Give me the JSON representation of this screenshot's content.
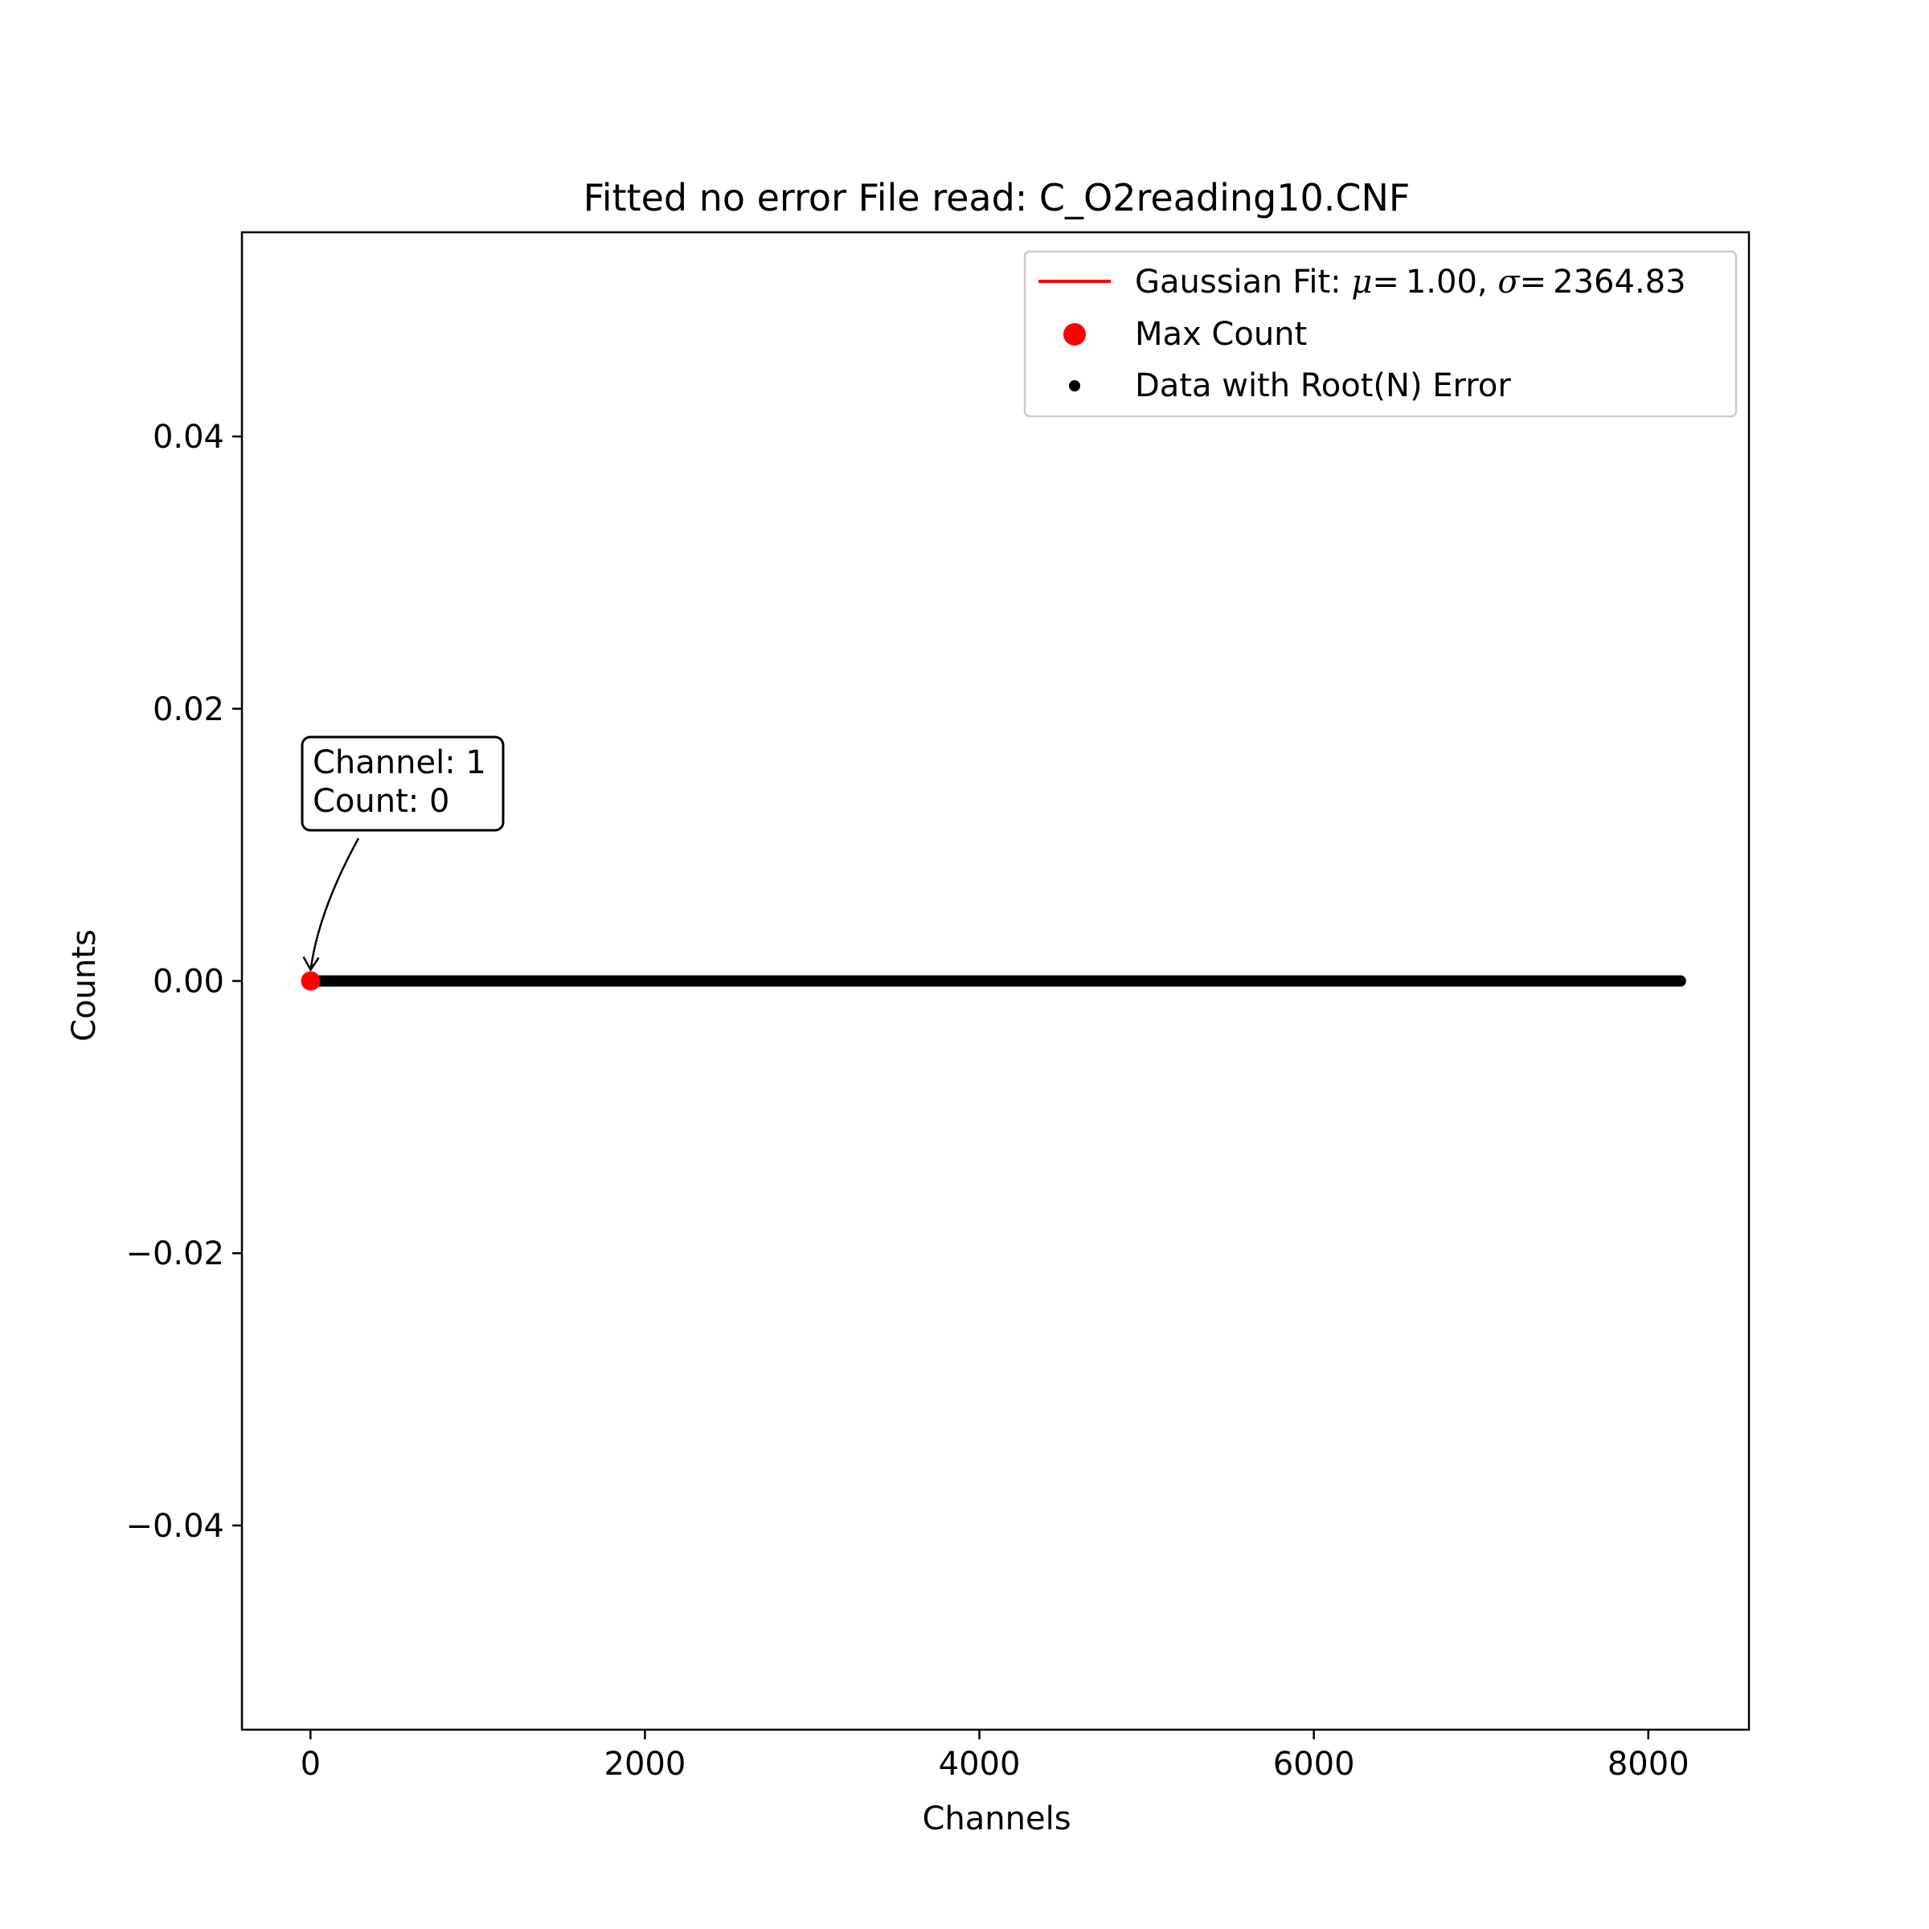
{
  "chart_data": {
    "type": "scatter",
    "title": "Fitted no error File read: C_O2reading10.CNF",
    "xlabel": "Channels",
    "ylabel": "Counts",
    "xlim": [
      -410,
      8602
    ],
    "ylim": [
      -0.055,
      0.055
    ],
    "xticks": [
      0,
      2000,
      4000,
      6000,
      8000
    ],
    "xtick_labels": [
      "0",
      "2000",
      "4000",
      "6000",
      "8000"
    ],
    "yticks": [
      -0.04,
      -0.02,
      0.0,
      0.02,
      0.04
    ],
    "ytick_labels": [
      "−0.04",
      "−0.02",
      "0.00",
      "0.02",
      "0.04"
    ],
    "grid": false,
    "legend_position": "top-right",
    "series": [
      {
        "name": "Data with Root(N) Error",
        "kind": "points",
        "color": "#000000",
        "x_range": [
          1,
          8192
        ],
        "y_constant": 0
      },
      {
        "name": "Max Count",
        "kind": "marker",
        "color": "#ff0000",
        "x": [
          1
        ],
        "y": [
          0
        ]
      },
      {
        "name": "Gaussian Fit",
        "kind": "line",
        "color": "#ff0000",
        "mu": 1.0,
        "sigma": 2364.83,
        "amplitude": 0
      }
    ],
    "legend": [
      {
        "prefix": "Gaussian Fit: ",
        "mu_symbol": "μ",
        "mu_value": "= 1.00, ",
        "sigma_symbol": "σ",
        "sigma_value": "= 2364.83",
        "color": "#ff0000",
        "marker": "line"
      },
      {
        "label": "Max Count",
        "color": "#ff0000",
        "marker": "circle"
      },
      {
        "label": "Data with Root(N) Error",
        "color": "#000000",
        "marker": "small-circle"
      }
    ],
    "annotation": {
      "line1": "Channel: 1",
      "line2": "Count: 0",
      "target_x": 1,
      "target_y": 0
    }
  }
}
